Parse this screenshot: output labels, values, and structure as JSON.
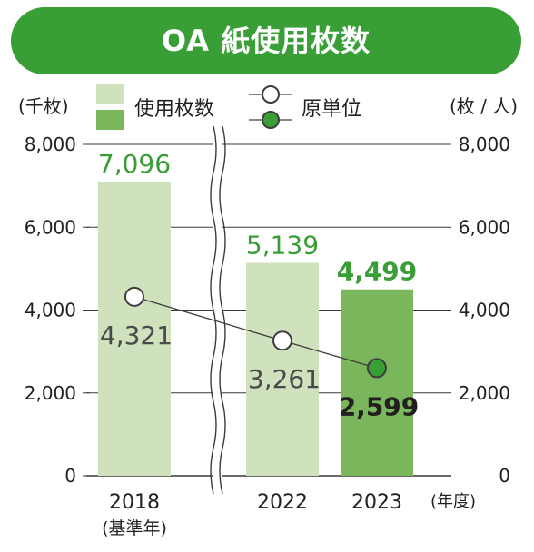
{
  "banner": {
    "title": "OA 紙使用枚数"
  },
  "chart_data": {
    "type": "bar+line",
    "title": "OA 紙使用枚数",
    "categories": [
      "2018",
      "2022",
      "2023"
    ],
    "category_sublabels": [
      "(基準年)",
      "",
      ""
    ],
    "x_unit": "(年度)",
    "y_left": {
      "unit": "(千枚)",
      "range": [
        0,
        8000
      ],
      "ticks": [
        {
          "v": 0,
          "t": "0"
        },
        {
          "v": 2000,
          "t": "2,000"
        },
        {
          "v": 4000,
          "t": "4,000"
        },
        {
          "v": 6000,
          "t": "6,000"
        },
        {
          "v": 8000,
          "t": "8,000"
        }
      ]
    },
    "y_right": {
      "unit": "(枚 / 人)",
      "range": [
        0,
        8000
      ],
      "ticks": [
        {
          "v": 0,
          "t": "0"
        },
        {
          "v": 2000,
          "t": "2,000"
        },
        {
          "v": 4000,
          "t": "4,000"
        },
        {
          "v": 6000,
          "t": "6,000"
        },
        {
          "v": 8000,
          "t": "8,000"
        }
      ]
    },
    "axis_break_between": [
      "2018",
      "2022"
    ],
    "grid": true,
    "legend_position": "top",
    "series": [
      {
        "name": "使用枚数",
        "kind": "bar",
        "axis": "left",
        "values": [
          7096,
          5139,
          4499
        ],
        "labels": [
          "7,096",
          "5,139",
          "4,499"
        ],
        "colors": [
          "#cfe1bd",
          "#cfe1bd",
          "#7ab65c"
        ],
        "legend_colors": [
          "#cfe1bd",
          "#7ab65c"
        ]
      },
      {
        "name": "原単位",
        "kind": "line",
        "axis": "right",
        "values": [
          4321,
          3261,
          2599
        ],
        "labels": [
          "4,321",
          "3,261",
          "2,599"
        ],
        "marker_colors": [
          "#ffffff",
          "#ffffff",
          "#3a9e36"
        ]
      }
    ],
    "colors": {
      "bar_label": "#3a9e36",
      "line_label": "#4a4a4a",
      "line_label_last": "#231f20",
      "grid": "#3a3a3a",
      "axis_text": "#231f20"
    }
  }
}
